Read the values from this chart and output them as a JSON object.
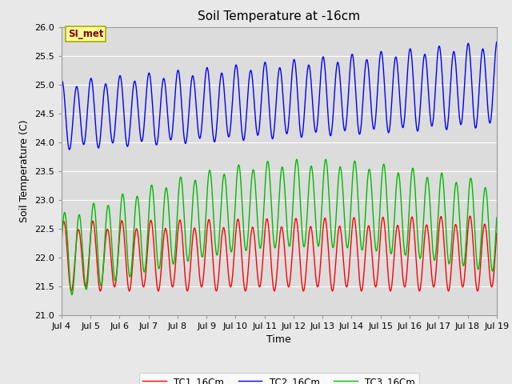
{
  "title": "Soil Temperature at -16cm",
  "xlabel": "Time",
  "ylabel": "Soil Temperature (C)",
  "ylim": [
    21.0,
    26.0
  ],
  "yticks": [
    21.0,
    21.5,
    22.0,
    22.5,
    23.0,
    23.5,
    24.0,
    24.5,
    25.0,
    25.5,
    26.0
  ],
  "xtick_labels": [
    "Jul 4",
    "Jul 5",
    "Jul 6",
    "Jul 7",
    "Jul 8",
    "Jul 9",
    "Jul 10",
    "Jul 11",
    "Jul 12",
    "Jul 13",
    "Jul 14",
    "Jul 15",
    "Jul 16",
    "Jul 17",
    "Jul 18",
    "Jul 19"
  ],
  "legend_labels": [
    "TC1_16Cm",
    "TC2_16Cm",
    "TC3_16Cm"
  ],
  "line_colors": [
    "#ff0000",
    "#0000ff",
    "#00bb00"
  ],
  "bg_color": "#e8e8e8",
  "plot_bg_color": "#dcdcdc",
  "annotation_text": "SI_met",
  "annotation_bg": "#ffff99",
  "annotation_fg": "#880000",
  "annotation_border": "#aaaa00",
  "n_days": 15,
  "samples_per_day": 96
}
